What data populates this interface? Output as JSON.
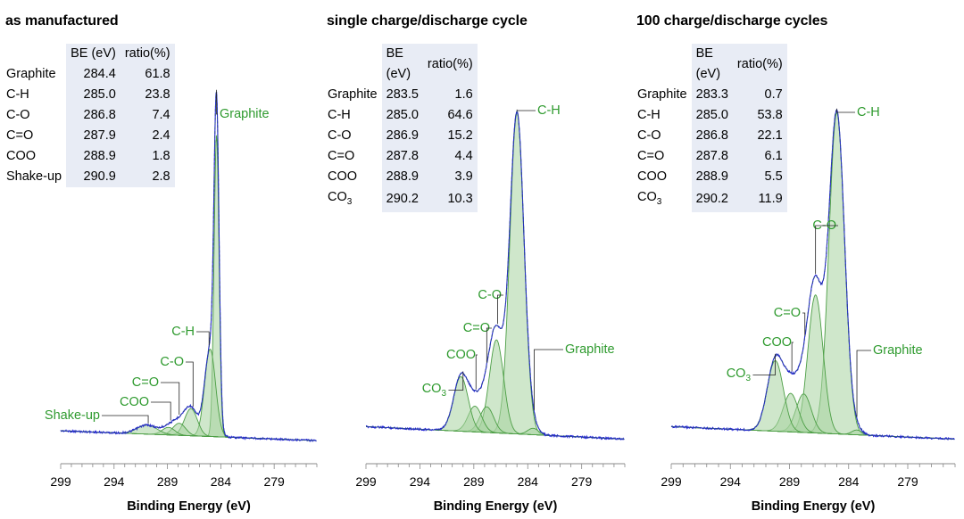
{
  "chart_data": [
    {
      "type": "line",
      "title": "as manufactured",
      "xlabel": "Binding Energy (eV)",
      "xlim": [
        299,
        275
      ],
      "xticks": [
        299,
        294,
        289,
        284,
        279
      ],
      "ylabel": "",
      "table": {
        "headers": [
          "",
          "BE (eV)",
          "ratio(%)"
        ],
        "rows": [
          {
            "name": "Graphite",
            "be": "284.4",
            "ratio": "61.8"
          },
          {
            "name": "C-H",
            "be": "285.0",
            "ratio": "23.8"
          },
          {
            "name": "C-O",
            "be": "286.8",
            "ratio": "7.4"
          },
          {
            "name": "C=O",
            "be": "287.9",
            "ratio": "2.4"
          },
          {
            "name": "COO",
            "be": "288.9",
            "ratio": "1.8"
          },
          {
            "name": "Shake-up",
            "be": "290.9",
            "ratio": "2.8"
          }
        ]
      },
      "baseline": 0.05,
      "peaks": [
        {
          "name": "Graphite",
          "center": 284.4,
          "height": 1.0,
          "width": 0.55
        },
        {
          "name": "C-H",
          "center": 285.0,
          "height": 0.29,
          "width": 1.2
        },
        {
          "name": "C-O",
          "center": 286.8,
          "height": 0.09,
          "width": 1.4
        },
        {
          "name": "C=O",
          "center": 287.9,
          "height": 0.04,
          "width": 1.4
        },
        {
          "name": "COO",
          "center": 288.9,
          "height": 0.025,
          "width": 1.4
        },
        {
          "name": "Shake-up",
          "center": 290.9,
          "height": 0.03,
          "width": 2.2
        }
      ],
      "annotations": [
        {
          "text": "Graphite",
          "target": 284.4
        },
        {
          "text": "C-H",
          "target": 285.1
        },
        {
          "text": "C-O",
          "target": 286.6
        },
        {
          "text": "C=O",
          "target": 287.9
        },
        {
          "text": "COO",
          "target": 288.7
        },
        {
          "text": "Shake-up",
          "target": 290.8
        }
      ]
    },
    {
      "type": "line",
      "title": "single charge/discharge cycle",
      "xlabel": "Binding Energy (eV)",
      "xlim": [
        299,
        275
      ],
      "xticks": [
        299,
        294,
        289,
        284,
        279
      ],
      "ylabel": "",
      "table": {
        "headers": [
          "",
          "BE (eV)",
          "ratio(%)"
        ],
        "rows": [
          {
            "name": "Graphite",
            "be": "283.5",
            "ratio": "1.6"
          },
          {
            "name": "C-H",
            "be": "285.0",
            "ratio": "64.6"
          },
          {
            "name": "C-O",
            "be": "286.9",
            "ratio": "15.2"
          },
          {
            "name": "C=O",
            "be": "287.8",
            "ratio": "4.4"
          },
          {
            "name": "COO",
            "be": "288.9",
            "ratio": "3.9"
          },
          {
            "name": "CO3",
            "be": "290.2",
            "ratio": "10.3"
          }
        ]
      },
      "baseline": 0.06,
      "peaks": [
        {
          "name": "C-H",
          "center": 285.0,
          "height": 1.0,
          "width": 1.55
        },
        {
          "name": "C-O",
          "center": 286.9,
          "height": 0.29,
          "width": 1.55
        },
        {
          "name": "C=O",
          "center": 287.8,
          "height": 0.08,
          "width": 1.5
        },
        {
          "name": "COO",
          "center": 288.9,
          "height": 0.08,
          "width": 1.5
        },
        {
          "name": "CO3",
          "center": 290.2,
          "height": 0.17,
          "width": 1.6
        },
        {
          "name": "Graphite",
          "center": 283.5,
          "height": 0.02,
          "width": 1.2
        }
      ],
      "annotations": [
        {
          "text": "C-H",
          "target": 285.0
        },
        {
          "text": "C-O",
          "target": 286.8
        },
        {
          "text": "C=O",
          "target": 287.8
        },
        {
          "text": "COO",
          "target": 288.8
        },
        {
          "text": "CO3",
          "target": 290.0
        },
        {
          "text": "Graphite",
          "target": 283.4
        }
      ]
    },
    {
      "type": "line",
      "title": "100 charge/discharge cycles",
      "xlabel": "Binding Energy (eV)",
      "xlim": [
        299,
        275
      ],
      "xticks": [
        299,
        294,
        289,
        284,
        279
      ],
      "ylabel": "",
      "table": {
        "headers": [
          "",
          "BE (eV)",
          "ratio(%)"
        ],
        "rows": [
          {
            "name": "Graphite",
            "be": "283.3",
            "ratio": "0.7"
          },
          {
            "name": "C-H",
            "be": "285.0",
            "ratio": "53.8"
          },
          {
            "name": "C-O",
            "be": "286.8",
            "ratio": "22.1"
          },
          {
            "name": "C=O",
            "be": "287.8",
            "ratio": "6.1"
          },
          {
            "name": "COO",
            "be": "288.9",
            "ratio": "5.5"
          },
          {
            "name": "CO3",
            "be": "290.2",
            "ratio": "11.9"
          }
        ]
      },
      "baseline": 0.06,
      "peaks": [
        {
          "name": "C-H",
          "center": 285.0,
          "height": 1.0,
          "width": 1.55
        },
        {
          "name": "C-O",
          "center": 286.8,
          "height": 0.43,
          "width": 1.5
        },
        {
          "name": "C=O",
          "center": 287.8,
          "height": 0.12,
          "width": 1.5
        },
        {
          "name": "COO",
          "center": 288.9,
          "height": 0.12,
          "width": 1.5
        },
        {
          "name": "CO3",
          "center": 290.2,
          "height": 0.22,
          "width": 1.6
        },
        {
          "name": "Graphite",
          "center": 283.3,
          "height": 0.015,
          "width": 1.0
        }
      ],
      "annotations": [
        {
          "text": "C-H",
          "target": 285.0
        },
        {
          "text": "C-O",
          "target": 286.8
        },
        {
          "text": "C=O",
          "target": 287.7
        },
        {
          "text": "COO",
          "target": 288.8
        },
        {
          "text": "CO3",
          "target": 290.2
        },
        {
          "text": "Graphite",
          "target": 283.3
        }
      ]
    }
  ],
  "colors": {
    "envelope": "#2323d8",
    "fit": "#2a4a8a",
    "peak_fill": "#a7d3a0",
    "peak_line": "#4c9e45",
    "label": "#2e9a2e",
    "table_shade": "#e8ecf5"
  }
}
